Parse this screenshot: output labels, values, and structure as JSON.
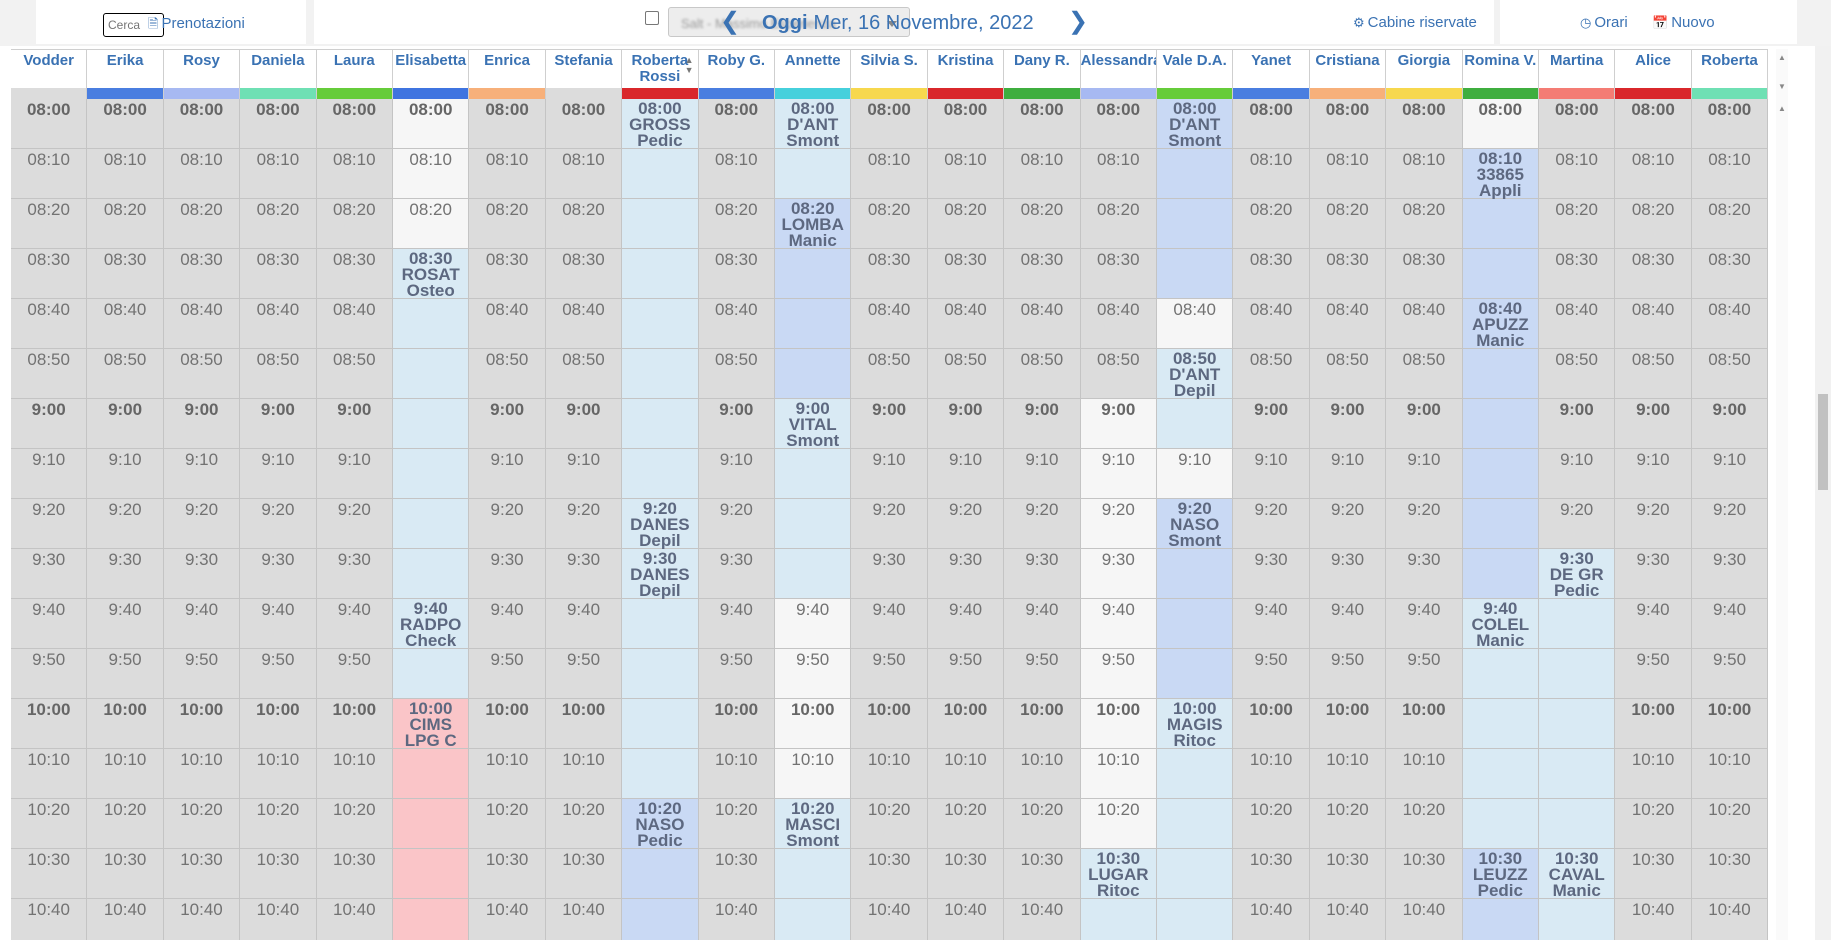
{
  "toolbar": {
    "search_placeholder": "Cerca",
    "bookings_label": "Prenotazioni",
    "bookings_icon": "document-icon",
    "staff_select_value": "Salt - Massimo Esperienza",
    "today_label": "Oggi",
    "date": "Mer, 16 Novembre, 2022",
    "reserved_cabins_label": "Cabine riservate",
    "reserved_cabins_icon": "gear-icon",
    "hours_label": "Orari",
    "hours_icon": "clock-icon",
    "new_label": "Nuovo",
    "new_icon": "calendar-icon"
  },
  "columns": [
    {
      "name": "Vodder",
      "color": "#dcdcdc"
    },
    {
      "name": "Erika",
      "color": "#4a7ee0"
    },
    {
      "name": "Rosy",
      "color": "#a7b9f2"
    },
    {
      "name": "Daniela",
      "color": "#6fe0b4"
    },
    {
      "name": "Laura",
      "color": "#66cc3a"
    },
    {
      "name": "Elisabetta",
      "color": "#3f74e0"
    },
    {
      "name": "Enrica",
      "color": "#f7b07a"
    },
    {
      "name": "Stefania",
      "color": "#dcdcdc"
    },
    {
      "name": "Roberta",
      "color": "#d9272b",
      "line2": "Rossi"
    },
    {
      "name": "Roby G.",
      "color": "#4a7ee0"
    },
    {
      "name": "Annette",
      "color": "#46d0dc"
    },
    {
      "name": "Silvia S.",
      "color": "#f7d84e"
    },
    {
      "name": "Kristina",
      "color": "#d9272b"
    },
    {
      "name": "Dany R.",
      "color": "#3fae3f"
    },
    {
      "name": "Alessandra",
      "color": "#a7b9f2"
    },
    {
      "name": "Vale D.A.",
      "color": "#66cc3a"
    },
    {
      "name": "Yanet",
      "color": "#4a7ee0"
    },
    {
      "name": "Cristiana",
      "color": "#f7b07a"
    },
    {
      "name": "Giorgia",
      "color": "#f7d84e"
    },
    {
      "name": "Romina V.",
      "color": "#3fae3f"
    },
    {
      "name": "Martina",
      "color": "#f47c74"
    },
    {
      "name": "Alice",
      "color": "#d9272b"
    },
    {
      "name": "Roberta",
      "color": "#6fe0b4"
    }
  ],
  "times": [
    "08:00",
    "08:10",
    "08:20",
    "08:30",
    "08:40",
    "08:50",
    "9:00",
    "9:10",
    "9:20",
    "9:30",
    "9:40",
    "9:50",
    "10:00",
    "10:10",
    "10:20",
    "10:30",
    "10:40"
  ],
  "hour_rows": [
    0,
    6,
    12
  ],
  "appointments": [
    {
      "col": 5,
      "row": 3,
      "time": "08:30",
      "client": "ROSAT",
      "service": "Osteo",
      "style": "lblue"
    },
    {
      "col": 5,
      "row": 10,
      "time": "9:40",
      "client": "RADPO",
      "service": "Check",
      "style": "lblue"
    },
    {
      "col": 5,
      "row": 12,
      "time": "10:00",
      "client": "CIMS",
      "service": "LPG C",
      "style": "pink"
    },
    {
      "col": 8,
      "row": 0,
      "time": "08:00",
      "client": "GROSS",
      "service": "Pedic",
      "style": "lblue"
    },
    {
      "col": 8,
      "row": 8,
      "time": "9:20",
      "client": "DANES",
      "service": "Depil",
      "style": "lblue"
    },
    {
      "col": 8,
      "row": 9,
      "time": "9:30",
      "client": "DANES",
      "service": "Depil",
      "style": "lblue"
    },
    {
      "col": 8,
      "row": 14,
      "time": "10:20",
      "client": "NASO",
      "service": "Pedic",
      "style": "blue"
    },
    {
      "col": 10,
      "row": 0,
      "time": "08:00",
      "client": "D'ANT",
      "service": "Smont",
      "style": "lblue"
    },
    {
      "col": 10,
      "row": 2,
      "time": "08:20",
      "client": "LOMBA",
      "service": "Manic",
      "style": "blue"
    },
    {
      "col": 10,
      "row": 6,
      "time": "9:00",
      "client": "VITAL",
      "service": "Smont",
      "style": "lblue"
    },
    {
      "col": 10,
      "row": 14,
      "time": "10:20",
      "client": "MASCI",
      "service": "Smont",
      "style": "lblue"
    },
    {
      "col": 14,
      "row": 15,
      "time": "10:30",
      "client": "LUGAR",
      "service": "Ritoc",
      "style": "lblue"
    },
    {
      "col": 15,
      "row": 0,
      "time": "08:00",
      "client": "D'ANT",
      "service": "Smont",
      "style": "blue"
    },
    {
      "col": 15,
      "row": 5,
      "time": "08:50",
      "client": "D'ANT",
      "service": "Depil",
      "style": "lblue"
    },
    {
      "col": 15,
      "row": 8,
      "time": "9:20",
      "client": "NASO",
      "service": "Smont",
      "style": "blue"
    },
    {
      "col": 15,
      "row": 12,
      "time": "10:00",
      "client": "MAGIS",
      "service": "Ritoc",
      "style": "lblue"
    },
    {
      "col": 19,
      "row": 1,
      "time": "08:10",
      "client": "33865",
      "service": "Appli",
      "style": "blue"
    },
    {
      "col": 19,
      "row": 4,
      "time": "08:40",
      "client": "APUZZ",
      "service": "Manic",
      "style": "blue"
    },
    {
      "col": 19,
      "row": 10,
      "time": "9:40",
      "client": "COLEL",
      "service": "Manic",
      "style": "lblue"
    },
    {
      "col": 19,
      "row": 15,
      "time": "10:30",
      "client": "LEUZZ",
      "service": "Pedic",
      "style": "blue"
    },
    {
      "col": 20,
      "row": 9,
      "time": "9:30",
      "client": "DE GR",
      "service": "Pedic",
      "style": "lblue"
    },
    {
      "col": 20,
      "row": 15,
      "time": "10:30",
      "client": "CAVAL",
      "service": "Manic",
      "style": "lblue"
    }
  ],
  "cell_styles": [
    {
      "col": 5,
      "rows": [
        0,
        1,
        2
      ],
      "style": "white"
    },
    {
      "col": 5,
      "rows": [
        4,
        5,
        6,
        7,
        8,
        9,
        11
      ],
      "style": "lblue"
    },
    {
      "col": 5,
      "rows": [
        13,
        14,
        15,
        16
      ],
      "style": "pink"
    },
    {
      "col": 8,
      "rows": [
        1,
        2,
        3,
        4,
        5,
        6,
        7,
        10,
        11,
        12,
        13
      ],
      "style": "lblue"
    },
    {
      "col": 8,
      "rows": [
        15,
        16
      ],
      "style": "blue"
    },
    {
      "col": 10,
      "rows": [
        1,
        7,
        8,
        9,
        15,
        16
      ],
      "style": "lblue"
    },
    {
      "col": 10,
      "rows": [
        3,
        4,
        5
      ],
      "style": "blue"
    },
    {
      "col": 10,
      "rows": [
        10,
        11,
        12,
        13
      ],
      "style": "white"
    },
    {
      "col": 14,
      "rows": [
        6,
        7,
        8,
        9,
        10,
        11,
        12,
        13,
        14
      ],
      "style": "white"
    },
    {
      "col": 14,
      "rows": [
        16
      ],
      "style": "lblue"
    },
    {
      "col": 15,
      "rows": [
        1,
        2,
        3,
        9,
        10,
        11
      ],
      "style": "blue"
    },
    {
      "col": 15,
      "rows": [
        4,
        7
      ],
      "style": "white"
    },
    {
      "col": 15,
      "rows": [
        6,
        13,
        14,
        15,
        16
      ],
      "style": "lblue"
    },
    {
      "col": 19,
      "rows": [
        0
      ],
      "style": "white"
    },
    {
      "col": 19,
      "rows": [
        2,
        3,
        5,
        6,
        7,
        8,
        9,
        16
      ],
      "style": "blue"
    },
    {
      "col": 19,
      "rows": [
        11,
        12,
        13,
        14
      ],
      "style": "lblue"
    },
    {
      "col": 20,
      "rows": [
        10,
        11,
        12,
        13,
        14,
        16
      ],
      "style": "lblue"
    }
  ]
}
